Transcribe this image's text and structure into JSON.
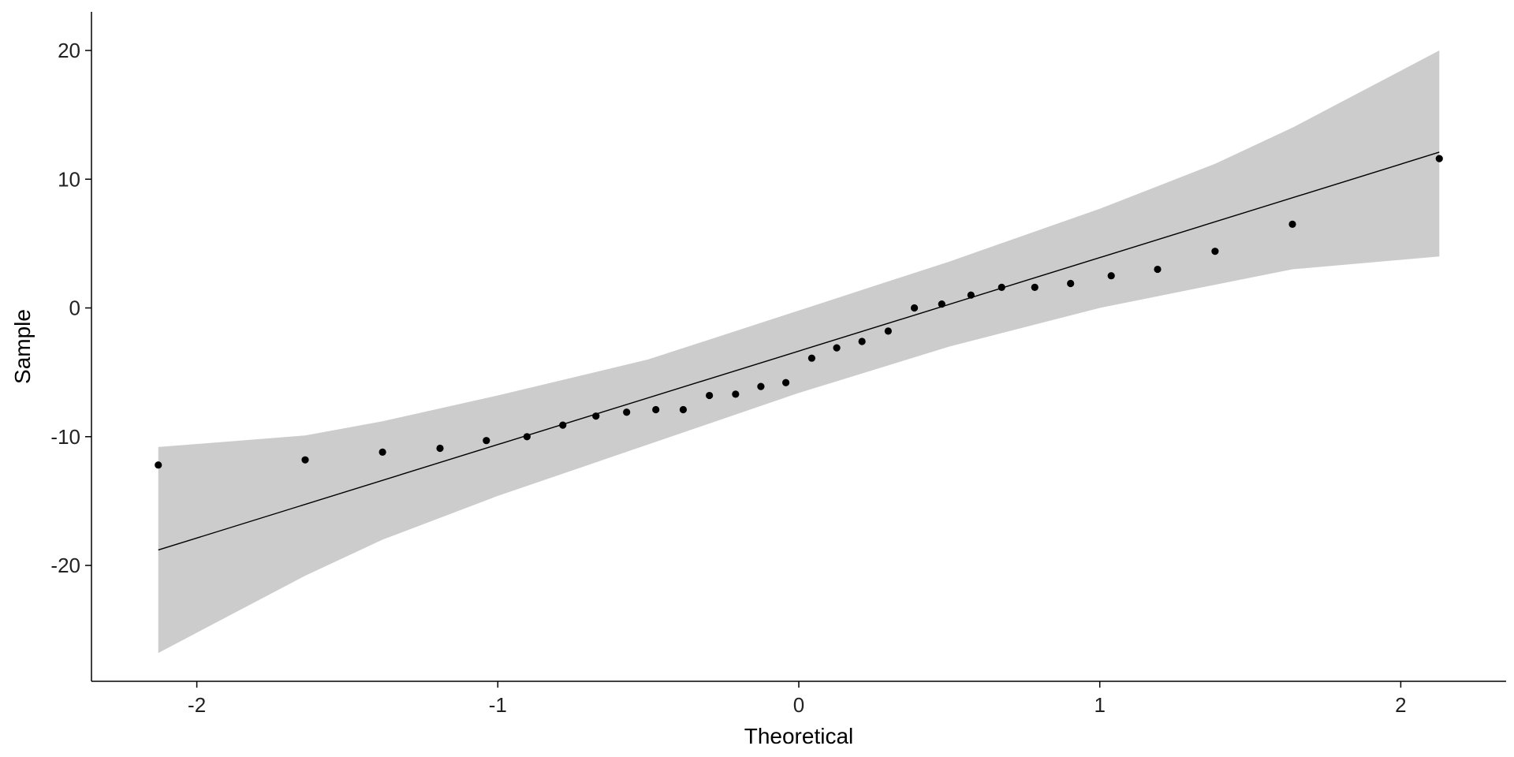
{
  "chart_data": {
    "type": "scatter",
    "title": "",
    "xlabel": "Theoretical",
    "ylabel": "Sample",
    "xlim": [
      -2.35,
      2.35
    ],
    "ylim": [
      -29,
      23
    ],
    "x_ticks": [
      -2,
      -1,
      0,
      1,
      2
    ],
    "x_tick_labels": [
      "-2",
      "-1",
      "0",
      "1",
      "2"
    ],
    "y_ticks": [
      -20,
      -10,
      0,
      10,
      20
    ],
    "y_tick_labels": [
      "-20",
      "-10",
      "0",
      "10",
      "20"
    ],
    "grid": false,
    "legend": "none",
    "colors": {
      "points": "#000000",
      "line": "#000000",
      "band": "#cccccc",
      "axis": "#000000"
    },
    "points": {
      "x": [
        -2.128,
        -1.64,
        -1.383,
        -1.192,
        -1.038,
        -0.903,
        -0.784,
        -0.674,
        -0.572,
        -0.475,
        -0.384,
        -0.297,
        -0.21,
        -0.126,
        -0.043,
        0.043,
        0.126,
        0.21,
        0.297,
        0.384,
        0.475,
        0.572,
        0.674,
        0.784,
        0.903,
        1.038,
        1.192,
        1.383,
        1.64,
        2.128
      ],
      "y": [
        -12.2,
        -11.8,
        -11.2,
        -10.9,
        -10.3,
        -10.0,
        -9.1,
        -8.4,
        -8.1,
        -7.9,
        -7.9,
        -6.8,
        -6.7,
        -6.1,
        -5.8,
        -3.9,
        -3.1,
        -2.6,
        -1.8,
        0.0,
        0.3,
        1.0,
        1.6,
        1.6,
        1.9,
        2.5,
        3.0,
        4.4,
        6.5,
        11.6
      ]
    },
    "reference_line": {
      "x": [
        -2.128,
        2.128
      ],
      "y": [
        -18.8,
        12.1
      ]
    },
    "confidence_band": {
      "x": [
        -2.128,
        -1.64,
        -1.383,
        -1.0,
        -0.5,
        0.0,
        0.5,
        1.0,
        1.383,
        1.64,
        2.128
      ],
      "upper": [
        -10.8,
        -9.9,
        -8.8,
        -6.8,
        -4.0,
        -0.2,
        3.6,
        7.7,
        11.2,
        14.0,
        20.0
      ],
      "lower": [
        -26.8,
        -20.8,
        -18.0,
        -14.6,
        -10.6,
        -6.6,
        -3.0,
        0.0,
        1.8,
        3.0,
        4.0
      ]
    }
  }
}
